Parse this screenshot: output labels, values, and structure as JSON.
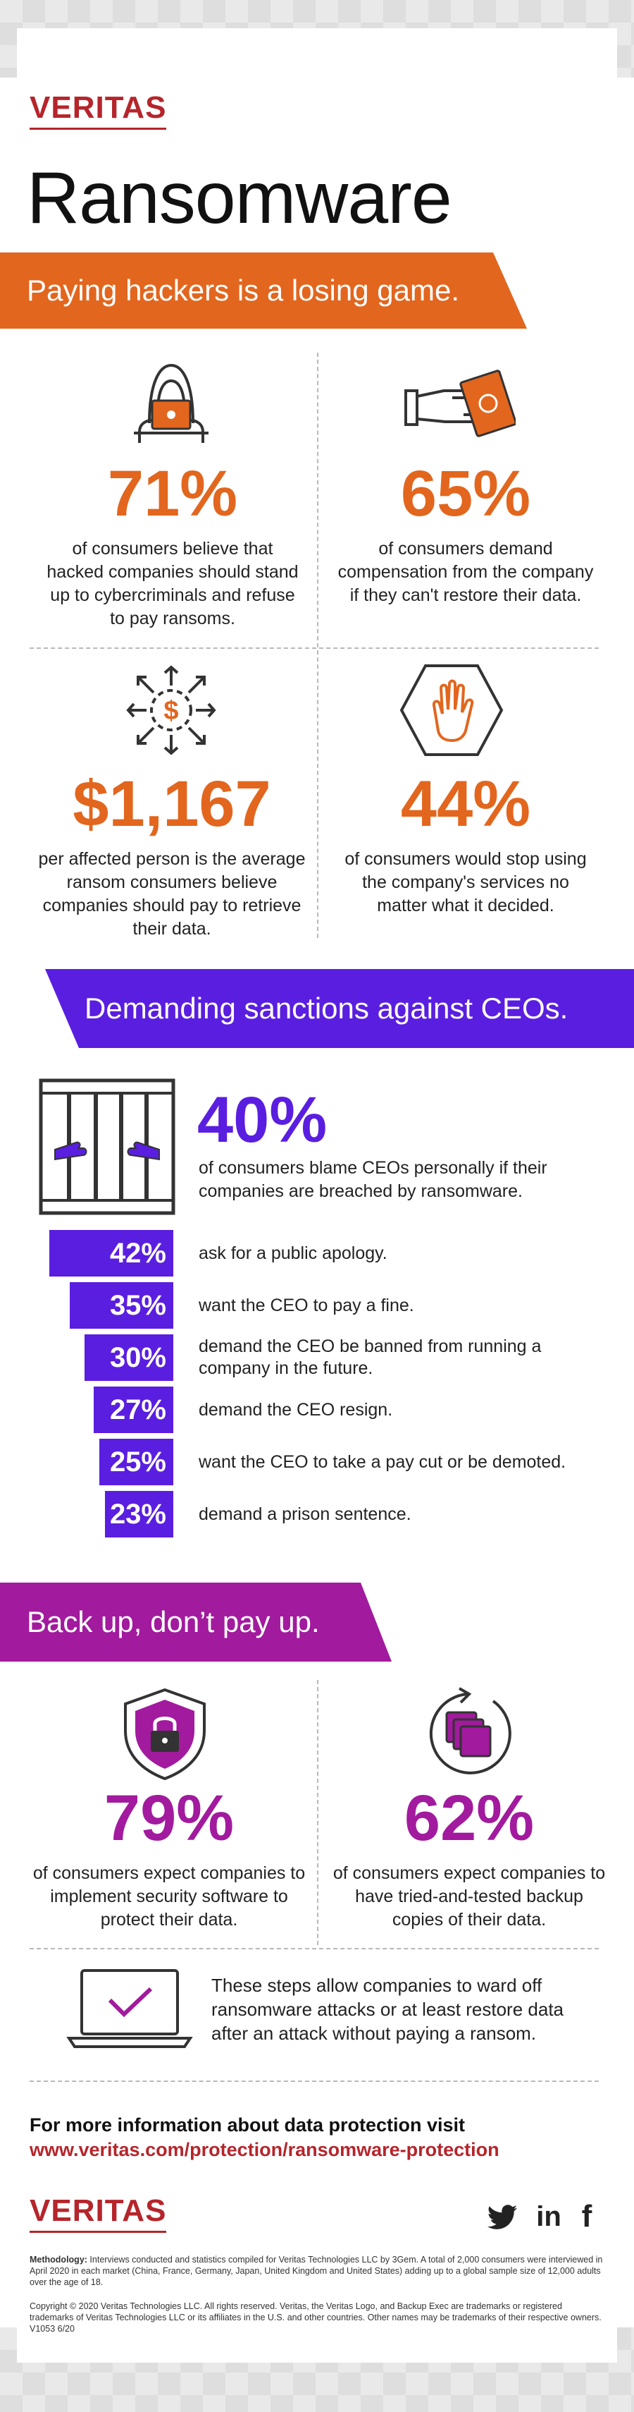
{
  "brand": {
    "logo": "VERITAS"
  },
  "title": "Ransomware",
  "section1": {
    "banner": "Paying hackers is a losing game.",
    "stats": [
      {
        "value": "71%",
        "text": "of consumers believe that hacked companies should stand up to cybercriminals and refuse to pay ransoms."
      },
      {
        "value": "65%",
        "text": "of consumers demand compensation from the company if they can't restore their data."
      },
      {
        "value": "$1,167",
        "text": "per affected person is the average ransom consumers believe companies should pay to retrieve their data."
      },
      {
        "value": "44%",
        "text": "of consumers would stop using the company's services no matter what it decided."
      }
    ],
    "icons": [
      "hacker-laptop-icon",
      "hand-money-icon",
      "dollar-arrows-icon",
      "hand-stop-hexagon-icon"
    ],
    "accent": "#e2661e"
  },
  "section2": {
    "banner": "Demanding sanctions against CEOs.",
    "headline": {
      "value": "40%",
      "text": "of consumers blame CEOs personally if their companies are breached by ransomware."
    },
    "icons": [
      "jail-bars-icon"
    ],
    "bars": [
      {
        "value": "42%",
        "label": "ask for a public apology.",
        "pct": 42
      },
      {
        "value": "35%",
        "label": "want the CEO to pay a fine.",
        "pct": 35
      },
      {
        "value": "30%",
        "label": "demand the CEO be banned from running a company in the future.",
        "pct": 30
      },
      {
        "value": "27%",
        "label": "demand the CEO resign.",
        "pct": 27
      },
      {
        "value": "25%",
        "label": "want the CEO to take a pay cut or be demoted.",
        "pct": 25
      },
      {
        "value": "23%",
        "label": "demand a prison sentence.",
        "pct": 23
      }
    ],
    "accent": "#5a1ee0"
  },
  "section3": {
    "banner": "Back up, don’t pay up.",
    "stats": [
      {
        "value": "79%",
        "text": "of consumers expect companies to implement security software to protect their data."
      },
      {
        "value": "62%",
        "text": "of consumers expect companies to have tried-and-tested backup copies of their data."
      }
    ],
    "icons": [
      "shield-lock-icon",
      "backup-copies-icon",
      "laptop-check-icon"
    ],
    "note": "These steps allow companies to ward off ransomware attacks or at least restore data after an attack without paying a ransom.",
    "accent": "#a21a9e"
  },
  "footer": {
    "more_heading": "For more information about data protection visit",
    "more_link": "www.veritas.com/protection/ransomware-protection",
    "social": {
      "twitter": "twitter-icon",
      "linkedin": "in",
      "facebook": "f"
    },
    "methodology_label": "Methodology:",
    "methodology": "Interviews conducted and statistics compiled for Veritas Technologies LLC by 3Gem. A total of 2,000 consumers were interviewed in April 2020 in each market (China, France, Germany, Japan, United Kingdom and United States) adding up to a global sample size of 12,000 adults over the age of 18.",
    "copyright": "Copyright © 2020 Veritas Technologies LLC. All rights reserved. Veritas, the Veritas Logo, and Backup Exec are trademarks or registered trademarks of Veritas Technologies LLC or its affiliates in the U.S. and other countries. Other names may be trademarks of their respective owners.   V1053 6/20"
  }
}
